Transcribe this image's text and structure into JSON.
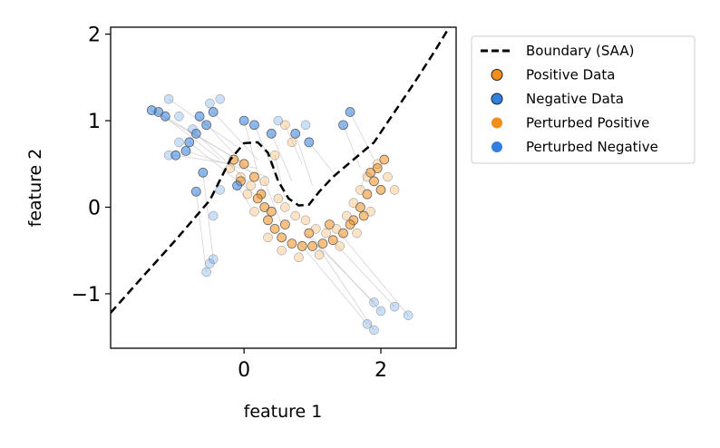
{
  "chart_data": {
    "type": "scatter",
    "title": "",
    "xlabel": "feature 1",
    "ylabel": "feature 2",
    "xlim": [
      -1.95,
      3.1
    ],
    "ylim": [
      -1.63,
      2.08
    ],
    "xticks": [
      0,
      2
    ],
    "yticks": [
      -1,
      0,
      1,
      2
    ],
    "grid": false,
    "legend_position": "outside-top-right",
    "colors": {
      "positive": "#f28e1c",
      "negative": "#2f80e0",
      "boundary": "#000000",
      "connector": "#c8c8c8"
    },
    "legend": [
      {
        "label": "Boundary (SAA)",
        "kind": "dashed-line"
      },
      {
        "label": "Positive Data",
        "kind": "marker-edged",
        "color": "#f28e1c"
      },
      {
        "label": "Negative Data",
        "kind": "marker-edged",
        "color": "#2f80e0"
      },
      {
        "label": "Perturbed Positive",
        "kind": "marker",
        "color": "#f28e1c"
      },
      {
        "label": "Perturbed Negative",
        "kind": "marker",
        "color": "#2f80e0"
      }
    ],
    "boundary": {
      "name": "Boundary (SAA)",
      "x": [
        -1.95,
        -1.5,
        -1.0,
        -0.5,
        -0.2,
        0.0,
        0.2,
        0.35,
        0.5,
        0.65,
        0.8,
        0.95,
        1.1,
        1.3,
        1.6,
        1.9,
        2.2,
        2.5,
        2.8,
        3.0
      ],
      "y": [
        -1.22,
        -0.82,
        -0.38,
        0.08,
        0.55,
        0.74,
        0.75,
        0.63,
        0.3,
        0.1,
        0.02,
        0.03,
        0.18,
        0.35,
        0.55,
        0.75,
        1.1,
        1.45,
        1.82,
        2.08
      ]
    },
    "series": [
      {
        "name": "Positive Data",
        "points": [
          [
            -0.15,
            0.55
          ],
          [
            0.0,
            0.5
          ],
          [
            0.15,
            0.35
          ],
          [
            0.25,
            0.15
          ],
          [
            0.3,
            0.0
          ],
          [
            0.35,
            -0.15
          ],
          [
            0.45,
            -0.25
          ],
          [
            0.55,
            -0.35
          ],
          [
            0.7,
            -0.42
          ],
          [
            0.85,
            -0.45
          ],
          [
            1.0,
            -0.45
          ],
          [
            1.15,
            -0.42
          ],
          [
            1.3,
            -0.38
          ],
          [
            1.45,
            -0.3
          ],
          [
            1.6,
            -0.15
          ],
          [
            1.7,
            0.0
          ],
          [
            1.8,
            0.15
          ],
          [
            1.9,
            0.3
          ],
          [
            1.95,
            0.45
          ],
          [
            2.05,
            0.55
          ],
          [
            1.75,
            -0.1
          ],
          [
            1.55,
            -0.2
          ],
          [
            0.95,
            -0.3
          ],
          [
            0.6,
            -0.2
          ],
          [
            0.4,
            -0.05
          ],
          [
            0.2,
            0.1
          ],
          [
            -0.05,
            0.3
          ],
          [
            1.25,
            -0.2
          ],
          [
            1.85,
            0.4
          ],
          [
            2.0,
            0.2
          ]
        ]
      },
      {
        "name": "Negative Data",
        "points": [
          [
            -1.25,
            1.1
          ],
          [
            -1.15,
            1.05
          ],
          [
            -1.35,
            1.12
          ],
          [
            -0.65,
            1.05
          ],
          [
            -0.45,
            1.1
          ],
          [
            -0.55,
            0.95
          ],
          [
            -0.7,
            0.85
          ],
          [
            -0.8,
            0.75
          ],
          [
            -0.85,
            0.65
          ],
          [
            -0.6,
            0.4
          ],
          [
            -0.7,
            0.18
          ],
          [
            0.0,
            1.0
          ],
          [
            0.15,
            0.95
          ],
          [
            0.4,
            0.85
          ],
          [
            0.75,
            0.85
          ],
          [
            0.95,
            0.75
          ],
          [
            -0.1,
            0.25
          ],
          [
            1.45,
            0.95
          ],
          [
            1.55,
            1.1
          ],
          [
            -1.0,
            0.6
          ]
        ]
      },
      {
        "name": "Perturbed Positive",
        "points": [
          [
            -0.05,
            0.35
          ],
          [
            0.1,
            0.25
          ],
          [
            0.3,
            0.3
          ],
          [
            0.5,
            0.1
          ],
          [
            0.6,
            0.0
          ],
          [
            0.75,
            -0.1
          ],
          [
            0.9,
            -0.15
          ],
          [
            1.05,
            -0.25
          ],
          [
            1.2,
            -0.3
          ],
          [
            1.35,
            -0.25
          ],
          [
            1.5,
            -0.1
          ],
          [
            1.6,
            0.05
          ],
          [
            1.7,
            0.2
          ],
          [
            1.8,
            0.35
          ],
          [
            1.95,
            0.5
          ],
          [
            2.1,
            0.35
          ],
          [
            2.2,
            0.2
          ],
          [
            1.85,
            -0.05
          ],
          [
            1.65,
            -0.3
          ],
          [
            1.4,
            -0.45
          ],
          [
            1.1,
            -0.55
          ],
          [
            0.8,
            -0.58
          ],
          [
            0.55,
            -0.5
          ],
          [
            0.35,
            -0.35
          ],
          [
            0.15,
            -0.05
          ],
          [
            0.05,
            0.15
          ],
          [
            -0.2,
            0.45
          ],
          [
            0.45,
            0.6
          ],
          [
            0.6,
            0.95
          ],
          [
            0.7,
            0.75
          ]
        ]
      },
      {
        "name": "Perturbed Negative",
        "points": [
          [
            -1.1,
            1.25
          ],
          [
            -0.95,
            1.05
          ],
          [
            -0.5,
            1.2
          ],
          [
            -0.35,
            1.25
          ],
          [
            -0.75,
            0.9
          ],
          [
            -0.95,
            0.75
          ],
          [
            -1.1,
            0.6
          ],
          [
            -0.35,
            0.2
          ],
          [
            -0.45,
            -0.1
          ],
          [
            -0.5,
            -0.65
          ],
          [
            -0.55,
            -0.75
          ],
          [
            -0.45,
            -0.6
          ],
          [
            1.9,
            -1.1
          ],
          [
            2.0,
            -1.2
          ],
          [
            1.8,
            -1.35
          ],
          [
            1.9,
            -1.42
          ],
          [
            2.2,
            -1.15
          ],
          [
            2.4,
            -1.25
          ],
          [
            0.9,
            0.95
          ],
          [
            0.5,
            1.0
          ]
        ]
      }
    ],
    "connectors": [
      [
        [
          -1.25,
          1.1
        ],
        [
          -0.35,
          0.55
        ]
      ],
      [
        [
          -1.15,
          1.05
        ],
        [
          0.0,
          0.5
        ]
      ],
      [
        [
          -1.35,
          1.12
        ],
        [
          -0.2,
          0.6
        ]
      ],
      [
        [
          -0.65,
          1.05
        ],
        [
          0.1,
          0.4
        ]
      ],
      [
        [
          -0.45,
          1.1
        ],
        [
          0.2,
          0.55
        ]
      ],
      [
        [
          -0.7,
          0.85
        ],
        [
          0.05,
          0.3
        ]
      ],
      [
        [
          -0.6,
          0.4
        ],
        [
          -0.45,
          -0.6
        ]
      ],
      [
        [
          -0.7,
          0.18
        ],
        [
          -0.55,
          -0.75
        ]
      ],
      [
        [
          -0.1,
          0.25
        ],
        [
          0.1,
          0.0
        ]
      ],
      [
        [
          0.0,
          1.0
        ],
        [
          0.3,
          0.1
        ]
      ],
      [
        [
          0.15,
          0.95
        ],
        [
          0.5,
          0.3
        ]
      ],
      [
        [
          0.4,
          0.85
        ],
        [
          0.7,
          0.3
        ]
      ],
      [
        [
          0.75,
          0.85
        ],
        [
          1.0,
          0.25
        ]
      ],
      [
        [
          0.95,
          0.75
        ],
        [
          1.3,
          0.4
        ]
      ],
      [
        [
          1.45,
          0.95
        ],
        [
          1.7,
          0.45
        ]
      ],
      [
        [
          1.55,
          1.1
        ],
        [
          1.9,
          0.55
        ]
      ],
      [
        [
          0.9,
          -0.3
        ],
        [
          1.9,
          -1.1
        ]
      ],
      [
        [
          1.0,
          -0.35
        ],
        [
          2.0,
          -1.2
        ]
      ],
      [
        [
          0.8,
          -0.4
        ],
        [
          1.8,
          -1.35
        ]
      ],
      [
        [
          1.05,
          -0.42
        ],
        [
          1.9,
          -1.42
        ]
      ],
      [
        [
          1.25,
          -0.35
        ],
        [
          2.2,
          -1.15
        ]
      ],
      [
        [
          1.4,
          -0.3
        ],
        [
          2.4,
          -1.25
        ]
      ],
      [
        [
          -1.0,
          0.6
        ],
        [
          0.2,
          0.45
        ]
      ],
      [
        [
          -0.85,
          0.65
        ],
        [
          0.35,
          0.35
        ]
      ],
      [
        [
          0.3,
          0.3
        ],
        [
          0.55,
          -0.2
        ]
      ],
      [
        [
          0.45,
          0.6
        ],
        [
          0.6,
          0.1
        ]
      ],
      [
        [
          0.6,
          0.95
        ],
        [
          0.85,
          0.5
        ]
      ],
      [
        [
          -1.1,
          1.25
        ],
        [
          -0.1,
          0.7
        ]
      ],
      [
        [
          -0.8,
          0.75
        ],
        [
          0.15,
          0.15
        ]
      ],
      [
        [
          1.7,
          0.2
        ],
        [
          1.8,
          0.45
        ]
      ]
    ]
  }
}
